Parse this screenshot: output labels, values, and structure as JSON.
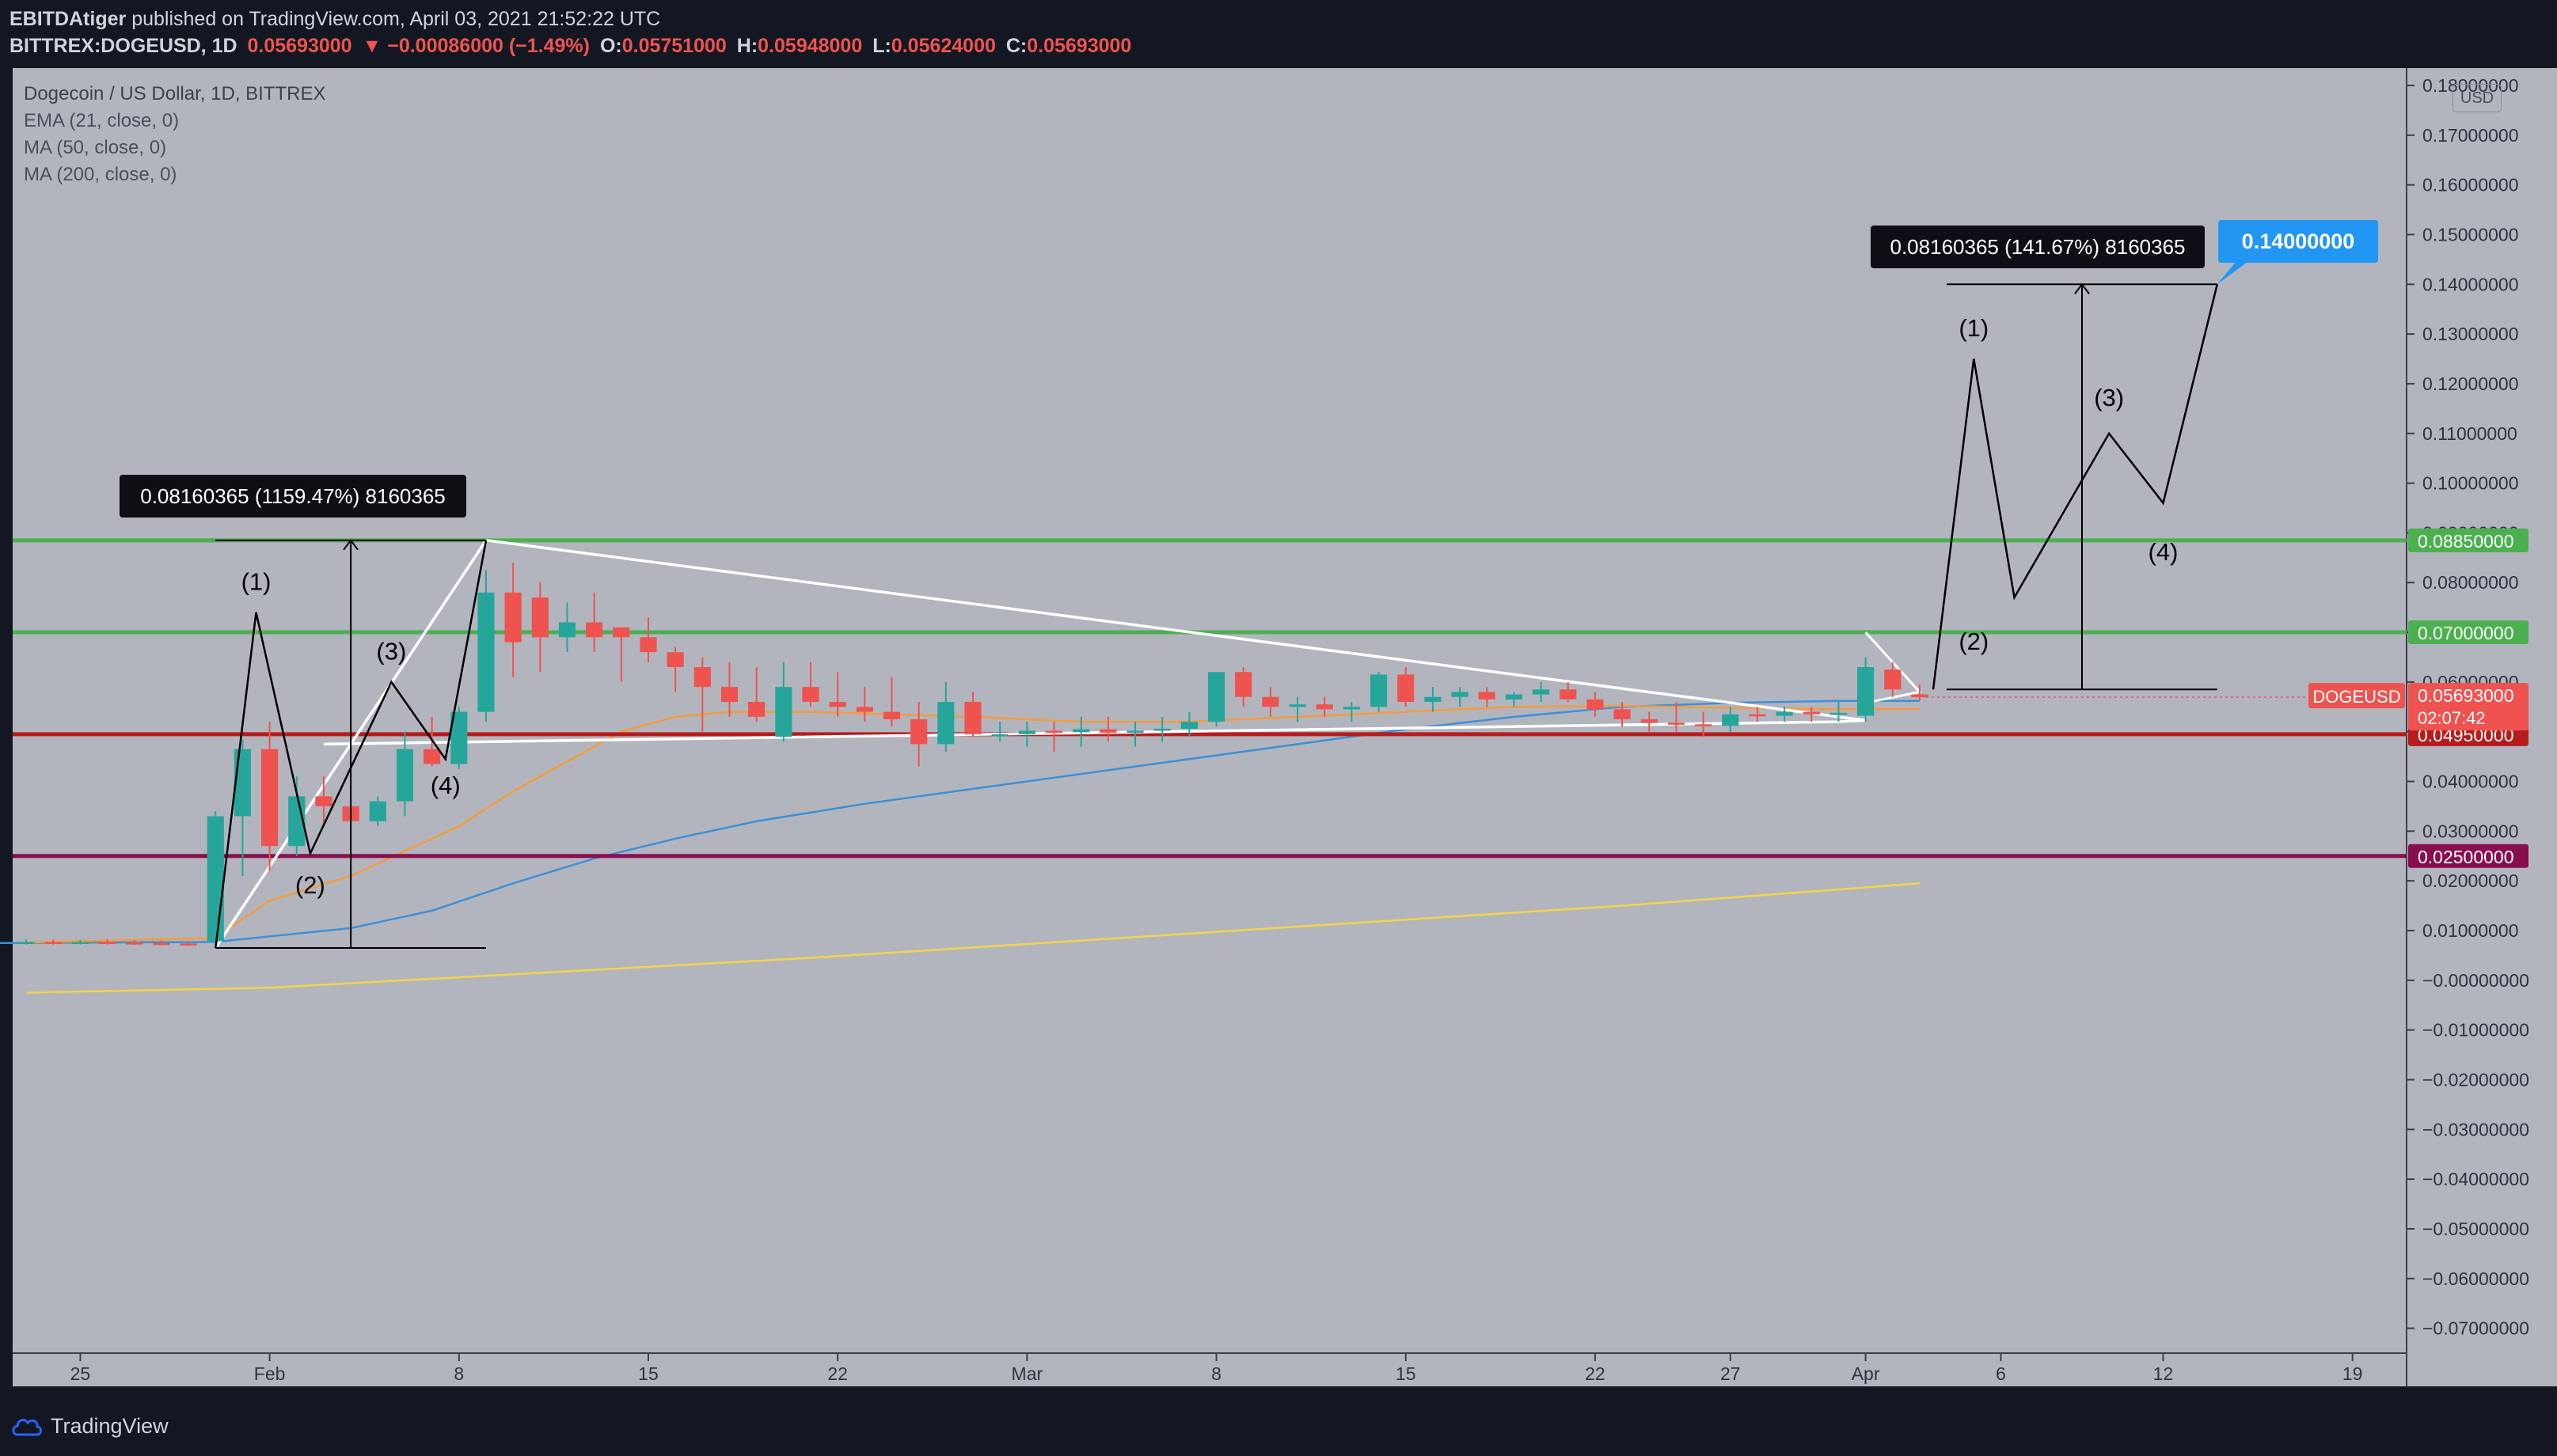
{
  "header": {
    "author": "EBITDAtiger",
    "published": "published on TradingView.com, April 03, 2021 21:52:22 UTC",
    "symbol": "BITTREX:DOGEUSD, 1D",
    "last": "0.05693000",
    "change": "▼ −0.00086000 (−1.49%)",
    "o_label": "O:",
    "o": "0.05751000",
    "h_label": "H:",
    "h": "0.05948000",
    "l_label": "L:",
    "l": "0.05624000",
    "c_label": "C:",
    "c": "0.05693000"
  },
  "legend": {
    "title": "Dogecoin / US Dollar, 1D, BITTREX",
    "ema": "EMA (21, close, 0)",
    "ma50": "MA (50, close, 0)",
    "ma200": "MA (200, close, 0)"
  },
  "currency": "USD",
  "footer": {
    "brand": "TradingView"
  },
  "colors": {
    "background": "#b2b5be",
    "up": "#26a69a",
    "down": "#ef5350",
    "support_green": "#4caf50",
    "resistance_red": "#b71c1c",
    "support_purple": "#880e4f",
    "ema": "#f39c3c",
    "ma50": "#3d8fd6",
    "ma200": "#f3d44a",
    "target": "#2196f3"
  },
  "chart_data": {
    "type": "candlestick",
    "title": "Dogecoin / US Dollar, 1D, BITTREX",
    "symbol": "DOGEUSD",
    "y_ticks": [
      "0.18000000",
      "0.17000000",
      "0.16000000",
      "0.15000000",
      "0.14000000",
      "0.13000000",
      "0.12000000",
      "0.11000000",
      "0.10000000",
      "0.09000000",
      "0.08000000",
      "0.07000000",
      "0.06000000",
      "0.05000000",
      "0.04000000",
      "0.03000000",
      "0.02000000",
      "0.01000000",
      "−0.00000000",
      "−0.01000000",
      "−0.02000000",
      "−0.03000000",
      "−0.04000000",
      "−0.05000000",
      "−0.06000000",
      "−0.07000000"
    ],
    "y_range": [
      -0.075,
      0.1835
    ],
    "x_ticks": [
      {
        "label": "25",
        "day": -7
      },
      {
        "label": "Feb",
        "day": 0
      },
      {
        "label": "8",
        "day": 7
      },
      {
        "label": "15",
        "day": 14
      },
      {
        "label": "22",
        "day": 21
      },
      {
        "label": "Mar",
        "day": 28
      },
      {
        "label": "8",
        "day": 35
      },
      {
        "label": "15",
        "day": 42
      },
      {
        "label": "22",
        "day": 49
      },
      {
        "label": "27",
        "day": 54
      },
      {
        "label": "Apr",
        "day": 59
      },
      {
        "label": "6",
        "day": 64
      },
      {
        "label": "12",
        "day": 70
      },
      {
        "label": "19",
        "day": 77
      }
    ],
    "x_range": [
      -9.5,
      79
    ],
    "candles": [
      {
        "day": -9,
        "o": 0.0077,
        "h": 0.0082,
        "l": 0.0072,
        "c": 0.0077
      },
      {
        "day": -8,
        "o": 0.0077,
        "h": 0.0082,
        "l": 0.0072,
        "c": 0.0076
      },
      {
        "day": -7,
        "o": 0.0076,
        "h": 0.0081,
        "l": 0.0072,
        "c": 0.0077
      },
      {
        "day": -6,
        "o": 0.0077,
        "h": 0.0082,
        "l": 0.0072,
        "c": 0.0076
      },
      {
        "day": -5,
        "o": 0.0076,
        "h": 0.0081,
        "l": 0.0071,
        "c": 0.0075
      },
      {
        "day": -4,
        "o": 0.0075,
        "h": 0.008,
        "l": 0.007,
        "c": 0.0074
      },
      {
        "day": -3,
        "o": 0.0074,
        "h": 0.0079,
        "l": 0.0069,
        "c": 0.0073
      },
      {
        "day": -2,
        "o": 0.0079,
        "h": 0.034,
        "l": 0.0074,
        "c": 0.033
      },
      {
        "day": -1,
        "o": 0.033,
        "h": 0.0484,
        "l": 0.021,
        "c": 0.0465
      },
      {
        "day": 0,
        "o": 0.0465,
        "h": 0.052,
        "l": 0.022,
        "c": 0.027
      },
      {
        "day": 1,
        "o": 0.027,
        "h": 0.041,
        "l": 0.025,
        "c": 0.037
      },
      {
        "day": 2,
        "o": 0.037,
        "h": 0.041,
        "l": 0.031,
        "c": 0.035
      },
      {
        "day": 3,
        "o": 0.035,
        "h": 0.039,
        "l": 0.031,
        "c": 0.032
      },
      {
        "day": 4,
        "o": 0.032,
        "h": 0.037,
        "l": 0.031,
        "c": 0.036
      },
      {
        "day": 5,
        "o": 0.036,
        "h": 0.05,
        "l": 0.033,
        "c": 0.0465
      },
      {
        "day": 6,
        "o": 0.0465,
        "h": 0.053,
        "l": 0.043,
        "c": 0.0435
      },
      {
        "day": 7,
        "o": 0.0435,
        "h": 0.055,
        "l": 0.0425,
        "c": 0.054
      },
      {
        "day": 8,
        "o": 0.054,
        "h": 0.0825,
        "l": 0.052,
        "c": 0.078
      },
      {
        "day": 9,
        "o": 0.078,
        "h": 0.084,
        "l": 0.061,
        "c": 0.068
      },
      {
        "day": 10,
        "o": 0.077,
        "h": 0.08,
        "l": 0.062,
        "c": 0.069
      },
      {
        "day": 11,
        "o": 0.069,
        "h": 0.076,
        "l": 0.066,
        "c": 0.072
      },
      {
        "day": 12,
        "o": 0.072,
        "h": 0.078,
        "l": 0.066,
        "c": 0.069
      },
      {
        "day": 13,
        "o": 0.071,
        "h": 0.07,
        "l": 0.06,
        "c": 0.069
      },
      {
        "day": 14,
        "o": 0.069,
        "h": 0.073,
        "l": 0.064,
        "c": 0.066
      },
      {
        "day": 15,
        "o": 0.066,
        "h": 0.067,
        "l": 0.058,
        "c": 0.063
      },
      {
        "day": 16,
        "o": 0.063,
        "h": 0.065,
        "l": 0.05,
        "c": 0.059
      },
      {
        "day": 17,
        "o": 0.059,
        "h": 0.064,
        "l": 0.053,
        "c": 0.056
      },
      {
        "day": 18,
        "o": 0.056,
        "h": 0.063,
        "l": 0.052,
        "c": 0.053
      },
      {
        "day": 19,
        "o": 0.049,
        "h": 0.064,
        "l": 0.048,
        "c": 0.059
      },
      {
        "day": 20,
        "o": 0.059,
        "h": 0.064,
        "l": 0.055,
        "c": 0.056
      },
      {
        "day": 21,
        "o": 0.056,
        "h": 0.062,
        "l": 0.053,
        "c": 0.055
      },
      {
        "day": 22,
        "o": 0.055,
        "h": 0.059,
        "l": 0.052,
        "c": 0.054
      },
      {
        "day": 23,
        "o": 0.054,
        "h": 0.061,
        "l": 0.051,
        "c": 0.0525
      },
      {
        "day": 24,
        "o": 0.0525,
        "h": 0.056,
        "l": 0.043,
        "c": 0.0475
      },
      {
        "day": 25,
        "o": 0.0475,
        "h": 0.06,
        "l": 0.046,
        "c": 0.056
      },
      {
        "day": 26,
        "o": 0.056,
        "h": 0.058,
        "l": 0.049,
        "c": 0.0495
      },
      {
        "day": 27,
        "o": 0.0495,
        "h": 0.052,
        "l": 0.048,
        "c": 0.0495
      },
      {
        "day": 28,
        "o": 0.0495,
        "h": 0.052,
        "l": 0.047,
        "c": 0.0502
      },
      {
        "day": 29,
        "o": 0.0502,
        "h": 0.052,
        "l": 0.046,
        "c": 0.0499
      },
      {
        "day": 30,
        "o": 0.0499,
        "h": 0.053,
        "l": 0.047,
        "c": 0.0505
      },
      {
        "day": 31,
        "o": 0.0505,
        "h": 0.053,
        "l": 0.048,
        "c": 0.0498
      },
      {
        "day": 32,
        "o": 0.0498,
        "h": 0.052,
        "l": 0.047,
        "c": 0.0502
      },
      {
        "day": 33,
        "o": 0.0502,
        "h": 0.053,
        "l": 0.048,
        "c": 0.0506
      },
      {
        "day": 34,
        "o": 0.0506,
        "h": 0.054,
        "l": 0.049,
        "c": 0.052
      },
      {
        "day": 35,
        "o": 0.052,
        "h": 0.062,
        "l": 0.051,
        "c": 0.062
      },
      {
        "day": 36,
        "o": 0.062,
        "h": 0.063,
        "l": 0.055,
        "c": 0.057
      },
      {
        "day": 37,
        "o": 0.057,
        "h": 0.059,
        "l": 0.053,
        "c": 0.055
      },
      {
        "day": 38,
        "o": 0.055,
        "h": 0.057,
        "l": 0.052,
        "c": 0.0555
      },
      {
        "day": 39,
        "o": 0.0555,
        "h": 0.057,
        "l": 0.053,
        "c": 0.0545
      },
      {
        "day": 40,
        "o": 0.0545,
        "h": 0.056,
        "l": 0.052,
        "c": 0.055
      },
      {
        "day": 41,
        "o": 0.055,
        "h": 0.062,
        "l": 0.054,
        "c": 0.0615
      },
      {
        "day": 42,
        "o": 0.0615,
        "h": 0.063,
        "l": 0.055,
        "c": 0.056
      },
      {
        "day": 43,
        "o": 0.056,
        "h": 0.059,
        "l": 0.054,
        "c": 0.057
      },
      {
        "day": 44,
        "o": 0.057,
        "h": 0.059,
        "l": 0.055,
        "c": 0.058
      },
      {
        "day": 45,
        "o": 0.058,
        "h": 0.059,
        "l": 0.055,
        "c": 0.0565
      },
      {
        "day": 46,
        "o": 0.0565,
        "h": 0.058,
        "l": 0.055,
        "c": 0.0575
      },
      {
        "day": 47,
        "o": 0.0575,
        "h": 0.06,
        "l": 0.056,
        "c": 0.0585
      },
      {
        "day": 48,
        "o": 0.0585,
        "h": 0.06,
        "l": 0.056,
        "c": 0.0565
      },
      {
        "day": 49,
        "o": 0.0565,
        "h": 0.058,
        "l": 0.053,
        "c": 0.0545
      },
      {
        "day": 50,
        "o": 0.0545,
        "h": 0.056,
        "l": 0.051,
        "c": 0.0525
      },
      {
        "day": 51,
        "o": 0.0525,
        "h": 0.054,
        "l": 0.05,
        "c": 0.0518
      },
      {
        "day": 52,
        "o": 0.0518,
        "h": 0.056,
        "l": 0.05,
        "c": 0.0515
      },
      {
        "day": 53,
        "o": 0.0515,
        "h": 0.054,
        "l": 0.049,
        "c": 0.0512
      },
      {
        "day": 54,
        "o": 0.0512,
        "h": 0.055,
        "l": 0.05,
        "c": 0.0535
      },
      {
        "day": 55,
        "o": 0.0535,
        "h": 0.055,
        "l": 0.052,
        "c": 0.0532
      },
      {
        "day": 56,
        "o": 0.0532,
        "h": 0.055,
        "l": 0.052,
        "c": 0.054
      },
      {
        "day": 57,
        "o": 0.054,
        "h": 0.055,
        "l": 0.052,
        "c": 0.0535
      },
      {
        "day": 58,
        "o": 0.0535,
        "h": 0.056,
        "l": 0.052,
        "c": 0.0538
      },
      {
        "day": 59,
        "o": 0.0532,
        "h": 0.065,
        "l": 0.052,
        "c": 0.063
      },
      {
        "day": 60,
        "o": 0.0625,
        "h": 0.064,
        "l": 0.057,
        "c": 0.0585
      },
      {
        "day": 61,
        "o": 0.05751,
        "h": 0.05948,
        "l": 0.05624,
        "c": 0.05693
      }
    ],
    "ema21": [
      [
        -9,
        0.0076
      ],
      [
        -2,
        0.0085
      ],
      [
        0,
        0.016
      ],
      [
        3,
        0.021
      ],
      [
        5,
        0.026
      ],
      [
        7,
        0.031
      ],
      [
        9,
        0.038
      ],
      [
        11,
        0.044
      ],
      [
        13,
        0.05
      ],
      [
        15,
        0.053
      ],
      [
        17,
        0.054
      ],
      [
        20,
        0.054
      ],
      [
        23,
        0.0535
      ],
      [
        26,
        0.053
      ],
      [
        30,
        0.052
      ],
      [
        34,
        0.052
      ],
      [
        38,
        0.053
      ],
      [
        42,
        0.054
      ],
      [
        46,
        0.055
      ],
      [
        50,
        0.0552
      ],
      [
        54,
        0.0548
      ],
      [
        58,
        0.0545
      ],
      [
        61,
        0.0545
      ]
    ],
    "ma50": [
      [
        -10,
        0.0075
      ],
      [
        -2,
        0.0077
      ],
      [
        3,
        0.0105
      ],
      [
        6,
        0.014
      ],
      [
        9,
        0.0195
      ],
      [
        12,
        0.0245
      ],
      [
        15,
        0.0285
      ],
      [
        18,
        0.032
      ],
      [
        22,
        0.0355
      ],
      [
        26,
        0.0385
      ],
      [
        30,
        0.0415
      ],
      [
        34,
        0.0445
      ],
      [
        38,
        0.0475
      ],
      [
        42,
        0.0505
      ],
      [
        46,
        0.053
      ],
      [
        50,
        0.055
      ],
      [
        54,
        0.0558
      ],
      [
        58,
        0.0562
      ],
      [
        61,
        0.0562
      ]
    ],
    "ma200": [
      [
        -9,
        -0.0025
      ],
      [
        0,
        -0.0015
      ],
      [
        10,
        0.0015
      ],
      [
        20,
        0.0045
      ],
      [
        30,
        0.008
      ],
      [
        40,
        0.0115
      ],
      [
        50,
        0.015
      ],
      [
        61,
        0.0195
      ]
    ],
    "levels": [
      {
        "value": 0.0885,
        "label": "0.08850000",
        "color": "#4caf50"
      },
      {
        "value": 0.07,
        "label": "0.07000000",
        "color": "#4caf50"
      },
      {
        "value": 0.0495,
        "label": "0.04950000",
        "color": "#b71c1c"
      },
      {
        "value": 0.025,
        "label": "0.02500000",
        "color": "#880e4f"
      }
    ],
    "current_price": {
      "value": 0.05693,
      "label": "0.05693000",
      "symbol": "DOGEUSD",
      "countdown": "02:07:42"
    },
    "measurements": [
      {
        "text": "0.08160365 (1159.47%) 8160365",
        "from": [
          -2,
          0.0065
        ],
        "to": [
          8,
          0.0885
        ]
      },
      {
        "text": "0.08160365 (141.67%) 8160365",
        "from": [
          62,
          0.0585
        ],
        "to": [
          72,
          0.14
        ]
      }
    ],
    "target": {
      "value": 0.14,
      "label": "0.14000000",
      "day": 72
    },
    "wave_labels_past": [
      "(1)",
      "(2)",
      "(3)",
      "(4)"
    ],
    "wave_labels_projected": [
      "(1)",
      "(2)",
      "(3)",
      "(4)"
    ]
  }
}
